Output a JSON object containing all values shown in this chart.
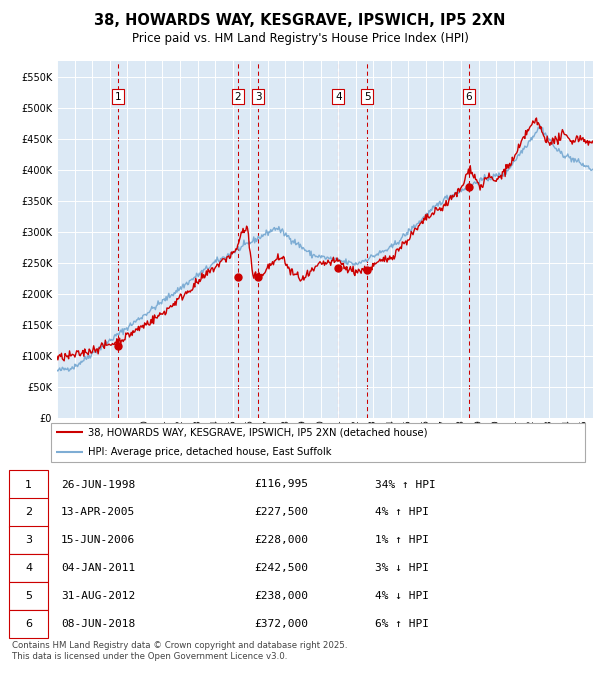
{
  "title": "38, HOWARDS WAY, KESGRAVE, IPSWICH, IP5 2XN",
  "subtitle": "Price paid vs. HM Land Registry's House Price Index (HPI)",
  "fig_bg_color": "#ffffff",
  "plot_bg_color": "#dce9f5",
  "legend_line1": "38, HOWARDS WAY, KESGRAVE, IPSWICH, IP5 2XN (detached house)",
  "legend_line2": "HPI: Average price, detached house, East Suffolk",
  "footer": "Contains HM Land Registry data © Crown copyright and database right 2025.\nThis data is licensed under the Open Government Licence v3.0.",
  "transactions": [
    {
      "num": 1,
      "date": "26-JUN-1998",
      "price": 116995,
      "hpi_pct": "34% ↑ HPI",
      "year": 1998.49
    },
    {
      "num": 2,
      "date": "13-APR-2005",
      "price": 227500,
      "hpi_pct": "4% ↑ HPI",
      "year": 2005.28
    },
    {
      "num": 3,
      "date": "15-JUN-2006",
      "price": 228000,
      "hpi_pct": "1% ↑ HPI",
      "year": 2006.45
    },
    {
      "num": 4,
      "date": "04-JAN-2011",
      "price": 242500,
      "hpi_pct": "3% ↓ HPI",
      "year": 2011.01
    },
    {
      "num": 5,
      "date": "31-AUG-2012",
      "price": 238000,
      "hpi_pct": "4% ↓ HPI",
      "year": 2012.66
    },
    {
      "num": 6,
      "date": "08-JUN-2018",
      "price": 372000,
      "hpi_pct": "6% ↑ HPI",
      "year": 2018.44
    }
  ],
  "red_line_color": "#cc0000",
  "blue_line_color": "#7eadd4",
  "dashed_line_color": "#cc0000",
  "ylim": [
    0,
    575000
  ],
  "xlim_start": 1995,
  "xlim_end": 2025.5,
  "yticks": [
    0,
    50000,
    100000,
    150000,
    200000,
    250000,
    300000,
    350000,
    400000,
    450000,
    500000,
    550000
  ],
  "ytick_labels": [
    "£0",
    "£50K",
    "£100K",
    "£150K",
    "£200K",
    "£250K",
    "£300K",
    "£350K",
    "£400K",
    "£450K",
    "£500K",
    "£550K"
  ],
  "xtick_years": [
    1995,
    1996,
    1997,
    1998,
    1999,
    2000,
    2001,
    2002,
    2003,
    2004,
    2005,
    2006,
    2007,
    2008,
    2009,
    2010,
    2011,
    2012,
    2013,
    2014,
    2015,
    2016,
    2017,
    2018,
    2019,
    2020,
    2021,
    2022,
    2023,
    2024,
    2025
  ]
}
